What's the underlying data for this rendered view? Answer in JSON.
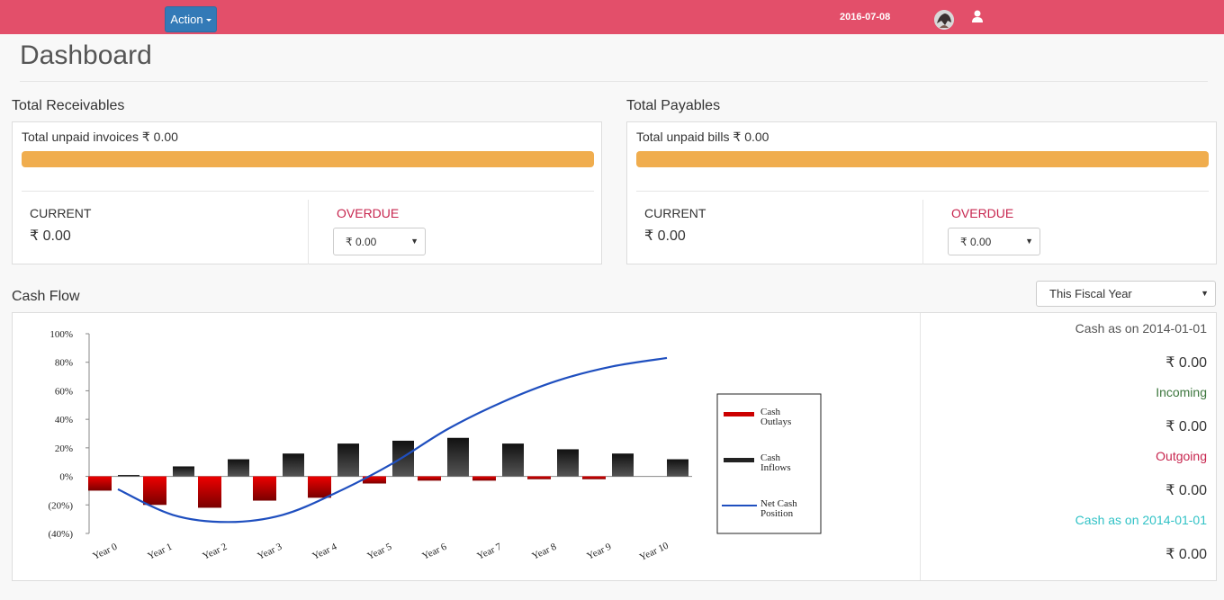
{
  "topbar": {
    "action_label": "Action",
    "date": "2016-07-08",
    "bg_color": "#e34f6a",
    "avatar_icon": "avatar",
    "user_icon": "user-icon"
  },
  "page": {
    "title": "Dashboard"
  },
  "receivables": {
    "section_title": "Total Receivables",
    "unpaid_label": "Total unpaid invoices ₹ 0.00",
    "bar_fill": 1.0,
    "current_label": "CURRENT",
    "current_value": "₹ 0.00",
    "overdue_label": "OVERDUE",
    "overdue_value": "₹ 0.00"
  },
  "payables": {
    "section_title": "Total Payables",
    "unpaid_label": "Total unpaid bills ₹ 0.00",
    "bar_fill": 1.0,
    "current_label": "CURRENT",
    "current_value": "₹ 0.00",
    "overdue_label": "OVERDUE",
    "overdue_value": "₹ 0.00"
  },
  "cashflow": {
    "section_title": "Cash Flow",
    "period_select": "This Fiscal Year",
    "side": {
      "cash_start_label": "Cash as on 2014-01-01",
      "cash_start_value": "₹ 0.00",
      "incoming_label": "Incoming",
      "incoming_value": "₹ 0.00",
      "outgoing_label": "Outgoing",
      "outgoing_value": "₹ 0.00",
      "cash_end_label": "Cash as on 2014-01-01",
      "cash_end_value": "₹ 0.00"
    }
  },
  "chart_data": {
    "type": "bar",
    "categories": [
      "Year 0",
      "Year 1",
      "Year 2",
      "Year 3",
      "Year 4",
      "Year 5",
      "Year 6",
      "Year 7",
      "Year 8",
      "Year 9",
      "Year 10"
    ],
    "ytick_labels": [
      "100%",
      "80%",
      "60%",
      "40%",
      "20%",
      "0%",
      "(20%)",
      "(40%)"
    ],
    "ylim": [
      -40,
      100
    ],
    "series": [
      {
        "name": "Cash Outlays",
        "type": "bar",
        "color": "#cc0000",
        "values": [
          -10,
          -20,
          -22,
          -17,
          -15,
          -5,
          -3,
          -3,
          -2,
          -2,
          null
        ]
      },
      {
        "name": "Cash Inflows",
        "type": "bar",
        "color": "#222222",
        "values": [
          1,
          7,
          12,
          16,
          23,
          25,
          27,
          23,
          19,
          16,
          12
        ]
      },
      {
        "name": "Net Cash Position",
        "type": "line",
        "color": "#1f4fbf",
        "values": [
          -9,
          -27,
          -32,
          -27,
          -11,
          9,
          33,
          52,
          67,
          77,
          83
        ]
      }
    ],
    "legend": {
      "position": "right",
      "entries": [
        "Cash Outlays",
        "Cash Inflows",
        "Net Cash Position"
      ]
    },
    "grid": false
  }
}
